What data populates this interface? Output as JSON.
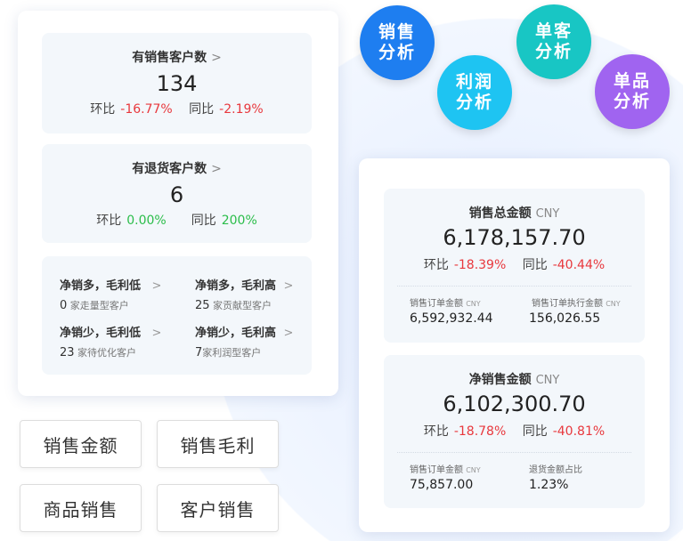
{
  "bubbles": [
    {
      "label": "销售分析",
      "color": "#1e7ef0"
    },
    {
      "label": "利润分析",
      "color": "#1ec4f2"
    },
    {
      "label": "单客分析",
      "color": "#18c6c4"
    },
    {
      "label": "单品分析",
      "color": "#a064f0"
    }
  ],
  "left": {
    "sales_customers": {
      "title": "有销售客户数",
      "value": "134",
      "mom_label": "环比",
      "mom": "-16.77%",
      "yoy_label": "同比",
      "yoy": "-2.19%"
    },
    "return_customers": {
      "title": "有退货客户数",
      "value": "6",
      "mom_label": "环比",
      "mom": "0.00%",
      "yoy_label": "同比",
      "yoy": "200%"
    },
    "segments": [
      {
        "title": "净销多，毛利低",
        "count": "0",
        "desc": "家走量型客户"
      },
      {
        "title": "净销多，毛利高",
        "count": "25",
        "desc": "家贡献型客户"
      },
      {
        "title": "净销少，毛利低",
        "count": "23",
        "desc": "家待优化客户"
      },
      {
        "title": "净销少，毛利高",
        "count": "7",
        "desc": "家利润型客户"
      }
    ]
  },
  "buttons": [
    "销售金额",
    "销售毛利",
    "商品销售",
    "客户销售"
  ],
  "right": {
    "total": {
      "title": "销售总金额",
      "unit": "CNY",
      "value": "6,178,157.70",
      "mom_label": "环比",
      "mom": "-18.39%",
      "yoy_label": "同比",
      "yoy": "-40.44%",
      "sub": [
        {
          "label": "销售订单金额",
          "unit": "CNY",
          "value": "6,592,932.44"
        },
        {
          "label": "销售订单执行金额",
          "unit": "CNY",
          "value": "156,026.55"
        }
      ]
    },
    "net": {
      "title": "净销售金额",
      "unit": "CNY",
      "value": "6,102,300.70",
      "mom_label": "环比",
      "mom": "-18.78%",
      "yoy_label": "同比",
      "yoy": "-40.81%",
      "sub": [
        {
          "label": "销售订单金额",
          "unit": "CNY",
          "value": "75,857.00"
        },
        {
          "label": "退货金额占比",
          "unit": "",
          "value": "1.23%"
        }
      ]
    }
  },
  "chevron": ">"
}
